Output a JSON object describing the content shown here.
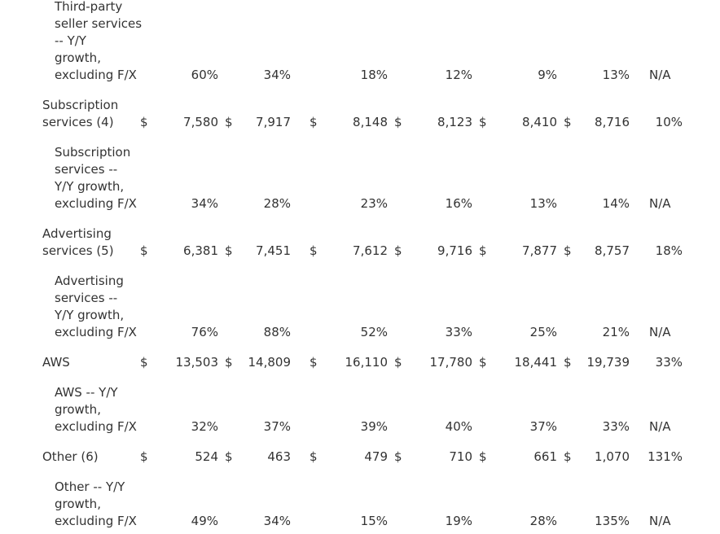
{
  "table": {
    "rows": [
      {
        "kind": "growth",
        "label_lines": [
          "Third-party",
          "seller services",
          "-- Y/Y",
          "growth,",
          "excluding F/X"
        ],
        "values": [
          "60%",
          "34%",
          "18%",
          "12%",
          "9%",
          "13%"
        ],
        "change": "N/A"
      },
      {
        "kind": "amount",
        "label_lines": [
          "Subscription",
          "services (4)"
        ],
        "currency": "$",
        "values": [
          "7,580",
          "7,917",
          "8,148",
          "8,123",
          "8,410",
          "8,716"
        ],
        "change": "10%"
      },
      {
        "kind": "growth",
        "label_lines": [
          "Subscription",
          "services --",
          "Y/Y growth,",
          "excluding F/X"
        ],
        "values": [
          "34%",
          "28%",
          "23%",
          "16%",
          "13%",
          "14%"
        ],
        "change": "N/A"
      },
      {
        "kind": "amount",
        "label_lines": [
          "Advertising",
          "services (5)"
        ],
        "currency": "$",
        "values": [
          "6,381",
          "7,451",
          "7,612",
          "9,716",
          "7,877",
          "8,757"
        ],
        "change": "18%"
      },
      {
        "kind": "growth",
        "label_lines": [
          "Advertising",
          "services --",
          "Y/Y growth,",
          "excluding F/X"
        ],
        "values": [
          "76%",
          "88%",
          "52%",
          "33%",
          "25%",
          "21%"
        ],
        "change": "N/A"
      },
      {
        "kind": "amount",
        "label_lines": [
          "AWS"
        ],
        "currency": "$",
        "values": [
          "13,503",
          "14,809",
          "16,110",
          "17,780",
          "18,441",
          "19,739"
        ],
        "change": "33%"
      },
      {
        "kind": "growth",
        "label_lines": [
          "AWS -- Y/Y",
          "growth,",
          "excluding F/X"
        ],
        "values": [
          "32%",
          "37%",
          "39%",
          "40%",
          "37%",
          "33%"
        ],
        "change": "N/A"
      },
      {
        "kind": "amount",
        "label_lines": [
          "Other (6)"
        ],
        "currency": "$",
        "values": [
          "524",
          "463",
          "479",
          "710",
          "661",
          "1,070"
        ],
        "change": "131%"
      },
      {
        "kind": "growth",
        "label_lines": [
          "Other -- Y/Y",
          "growth,",
          "excluding F/X"
        ],
        "values": [
          "49%",
          "34%",
          "15%",
          "19%",
          "28%",
          "135%"
        ],
        "change": "N/A"
      }
    ]
  }
}
